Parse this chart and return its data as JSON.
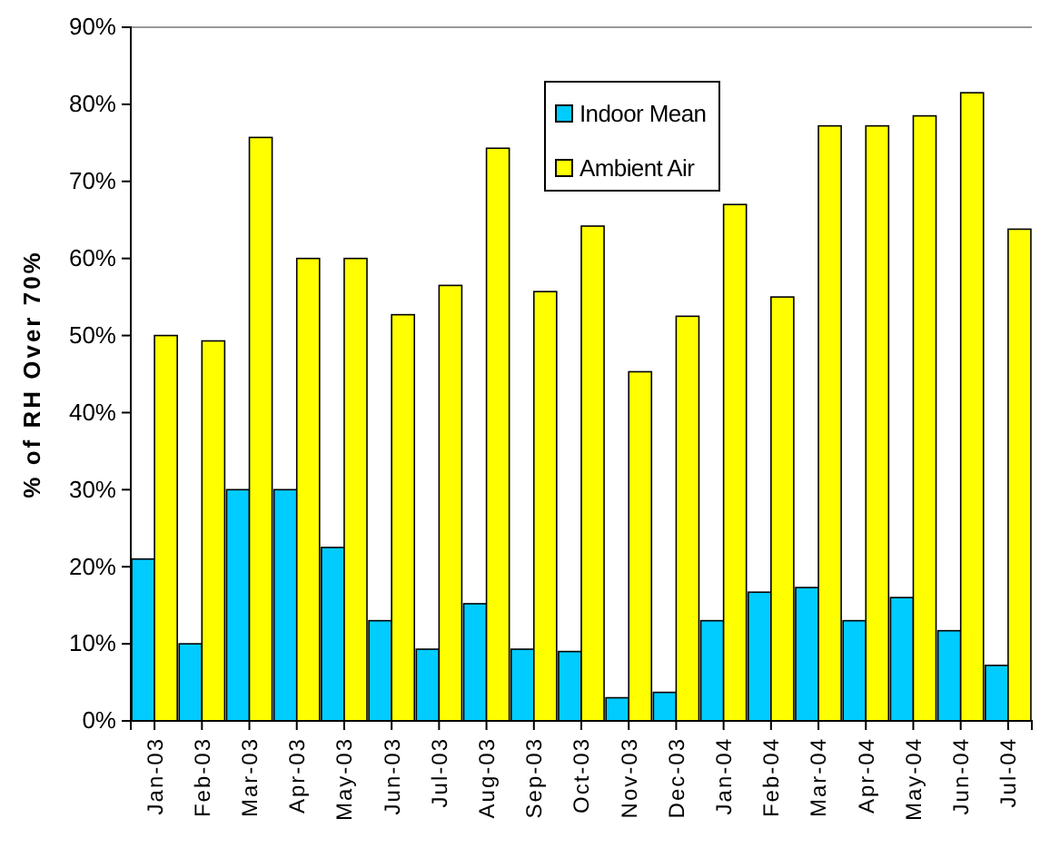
{
  "chart_data": {
    "type": "bar",
    "ylabel": "% of RH Over 70%",
    "categories": [
      "Jan-03",
      "Feb-03",
      "Mar-03",
      "Apr-03",
      "May-03",
      "Jun-03",
      "Jul-03",
      "Aug-03",
      "Sep-03",
      "Oct-03",
      "Nov-03",
      "Dec-03",
      "Jan-04",
      "Feb-04",
      "Mar-04",
      "Apr-04",
      "May-04",
      "Jun-04",
      "Jul-04"
    ],
    "series": [
      {
        "name": "Indoor Mean",
        "color": "#00ccff",
        "values": [
          21,
          10,
          30,
          30,
          22.5,
          13,
          9.3,
          15.2,
          9.3,
          9,
          3,
          3.7,
          13,
          16.7,
          17.3,
          13,
          16,
          11.7,
          7.2
        ]
      },
      {
        "name": "Ambient Air",
        "color": "#ffff00",
        "values": [
          50,
          49.3,
          75.7,
          60,
          60,
          52.7,
          56.5,
          74.3,
          55.7,
          64.2,
          45.3,
          52.5,
          67,
          55,
          77.2,
          77.2,
          78.5,
          81.5,
          63.8
        ]
      }
    ],
    "ylim": [
      0,
      90
    ],
    "yticks": [
      {
        "value": 0,
        "label": "0%"
      },
      {
        "value": 10,
        "label": "10%"
      },
      {
        "value": 20,
        "label": "20%"
      },
      {
        "value": 30,
        "label": "30%"
      },
      {
        "value": 40,
        "label": "40%"
      },
      {
        "value": 50,
        "label": "50%"
      },
      {
        "value": 60,
        "label": "60%"
      },
      {
        "value": 70,
        "label": "70%"
      },
      {
        "value": 80,
        "label": "80%"
      },
      {
        "value": 90,
        "label": "90%"
      }
    ],
    "grid": false,
    "legend": "top"
  }
}
